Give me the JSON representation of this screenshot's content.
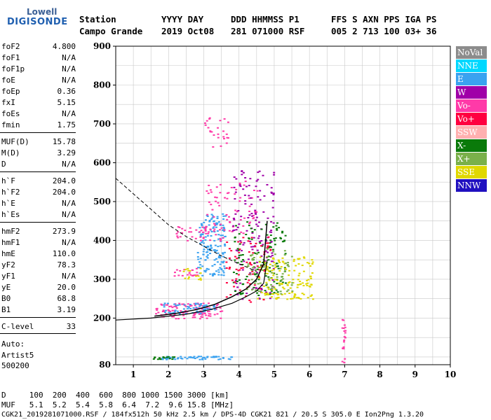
{
  "logo": {
    "line1": "Lowell",
    "line2": "DIGISONDE"
  },
  "header": {
    "row1": [
      "Station",
      "YYYY DAY",
      "DDD HHMMSS P1",
      "FFS S AXN PPS IGA PS"
    ],
    "row2": [
      "Campo Grande",
      "2019 Oct08",
      "281 071000 RSF",
      "005 2 713 100 03+ 36"
    ]
  },
  "params": [
    {
      "name": "foF2",
      "value": "4.800"
    },
    {
      "name": "foF1",
      "value": "N/A"
    },
    {
      "name": "foF1p",
      "value": "N/A"
    },
    {
      "name": "foE",
      "value": "N/A"
    },
    {
      "name": "foEp",
      "value": "0.36"
    },
    {
      "name": "fxI",
      "value": "5.15"
    },
    {
      "name": "foEs",
      "value": "N/A"
    },
    {
      "name": "fmin",
      "value": "1.75"
    },
    {
      "name": "MUF(D)",
      "value": "15.78"
    },
    {
      "name": "M(D)",
      "value": "3.29"
    },
    {
      "name": "D",
      "value": "N/A"
    },
    {
      "name": "h`F",
      "value": "204.0"
    },
    {
      "name": "h`F2",
      "value": "204.0"
    },
    {
      "name": "h`E",
      "value": "N/A"
    },
    {
      "name": "h`Es",
      "value": "N/A"
    },
    {
      "name": "hmF2",
      "value": "273.9"
    },
    {
      "name": "hmF1",
      "value": "N/A"
    },
    {
      "name": "hmE",
      "value": "110.0"
    },
    {
      "name": "yF2",
      "value": "78.3"
    },
    {
      "name": "yF1",
      "value": "N/A"
    },
    {
      "name": "yE",
      "value": "20.0"
    },
    {
      "name": "B0",
      "value": "68.8"
    },
    {
      "name": "B1",
      "value": "3.19"
    },
    {
      "name": "C-level",
      "value": "33"
    }
  ],
  "auto": {
    "line1": "Auto:",
    "line2": "Artist5",
    "line3": "500200"
  },
  "legend": [
    {
      "label": "NoVal",
      "color": "#8c8c8c"
    },
    {
      "label": "NNE",
      "color": "#00d8ff"
    },
    {
      "label": "E",
      "color": "#3aa2f0"
    },
    {
      "label": "W",
      "color": "#a000a8"
    },
    {
      "label": "Vo-",
      "color": "#ff3aa8"
    },
    {
      "label": "Vo+",
      "color": "#ff0040"
    },
    {
      "label": "SSW",
      "color": "#ffb0b0"
    },
    {
      "label": "X-",
      "color": "#0a7a0a"
    },
    {
      "label": "X+",
      "color": "#7ab04a"
    },
    {
      "label": "SSE",
      "color": "#e0d800"
    },
    {
      "label": "NNW",
      "color": "#2010c0"
    }
  ],
  "footer": {
    "line1": "D     100  200  400  600  800 1000 1500 3000 [km]",
    "line2": "MUF   5.1  5.2  5.4  5.8  6.4  7.2  9.6 15.8 [MHz]",
    "line3": "CGK21_2019281071000.RSF / 184fx512h 50 kHz 2.5 km / DPS-4D CGK21 821 / 20.5 S 305.0 E Ion2Png 1.3.20"
  },
  "chart_data": {
    "type": "scatter",
    "title": "",
    "xlabel": "",
    "ylabel": "",
    "xlim": [
      0.5,
      10
    ],
    "ylim": [
      80,
      900
    ],
    "xticks": [
      1,
      2,
      3,
      4,
      5,
      6,
      7,
      8,
      9,
      10
    ],
    "yticks": [
      80,
      200,
      300,
      400,
      500,
      600,
      700,
      800,
      900
    ],
    "grid": true,
    "legend_position": "right",
    "profile_curve": {
      "x": [
        0.5,
        1.5,
        2.5,
        3.2,
        3.8,
        4.2,
        4.5,
        4.7,
        4.8
      ],
      "y": [
        195,
        200,
        210,
        222,
        238,
        255,
        270,
        290,
        350
      ]
    },
    "virtual_trace": {
      "x": [
        1.6,
        2.2,
        2.8,
        3.3,
        3.8,
        4.2,
        4.5,
        4.7,
        4.8
      ],
      "y": [
        205,
        212,
        222,
        235,
        255,
        275,
        300,
        340,
        450
      ]
    },
    "dashed_curve": {
      "x": [
        0.5,
        1.0,
        1.5,
        2.0,
        2.5,
        3.0,
        3.5,
        4.0,
        4.5
      ],
      "y": [
        560,
        520,
        480,
        440,
        410,
        385,
        360,
        340,
        320
      ]
    },
    "echo_clusters": [
      {
        "color": "#ff3aa8",
        "x": [
          1.6,
          3.5
        ],
        "y": [
          200,
          240
        ],
        "n": 120
      },
      {
        "color": "#3aa2f0",
        "x": [
          1.8,
          3.3
        ],
        "y": [
          212,
          240
        ],
        "n": 60
      },
      {
        "color": "#3aa2f0",
        "x": [
          2.8,
          3.6
        ],
        "y": [
          310,
          470
        ],
        "n": 160
      },
      {
        "color": "#ff3aa8",
        "x": [
          2.2,
          3.6
        ],
        "y": [
          400,
          440
        ],
        "n": 40
      },
      {
        "color": "#ff3aa8",
        "x": [
          3.0,
          4.5
        ],
        "y": [
          420,
          560
        ],
        "n": 70
      },
      {
        "color": "#a000a8",
        "x": [
          3.8,
          5.0
        ],
        "y": [
          250,
          590
        ],
        "n": 150
      },
      {
        "color": "#0a7a0a",
        "x": [
          3.8,
          5.3
        ],
        "y": [
          260,
          450
        ],
        "n": 130
      },
      {
        "color": "#e0d800",
        "x": [
          4.5,
          6.1
        ],
        "y": [
          250,
          360
        ],
        "n": 150
      },
      {
        "color": "#ff0040",
        "x": [
          3.6,
          4.9
        ],
        "y": [
          240,
          420
        ],
        "n": 70
      },
      {
        "color": "#7ab04a",
        "x": [
          4.2,
          5.5
        ],
        "y": [
          260,
          380
        ],
        "n": 70
      },
      {
        "color": "#3aa2f0",
        "x": [
          1.8,
          3.8
        ],
        "y": [
          95,
          103
        ],
        "n": 60
      },
      {
        "color": "#0a7a0a",
        "x": [
          1.5,
          2.2
        ],
        "y": [
          95,
          102
        ],
        "n": 15
      },
      {
        "color": "#ff3aa8",
        "x": [
          3.0,
          3.7
        ],
        "y": [
          640,
          720
        ],
        "n": 25
      },
      {
        "color": "#ff3aa8",
        "x": [
          2.1,
          2.8
        ],
        "y": [
          310,
          330
        ],
        "n": 20
      },
      {
        "color": "#ff3aa8",
        "x": [
          6.9,
          7.0
        ],
        "y": [
          82,
          200
        ],
        "n": 20
      },
      {
        "color": "#e0d800",
        "x": [
          2.4,
          2.9
        ],
        "y": [
          300,
          330
        ],
        "n": 15
      }
    ]
  }
}
